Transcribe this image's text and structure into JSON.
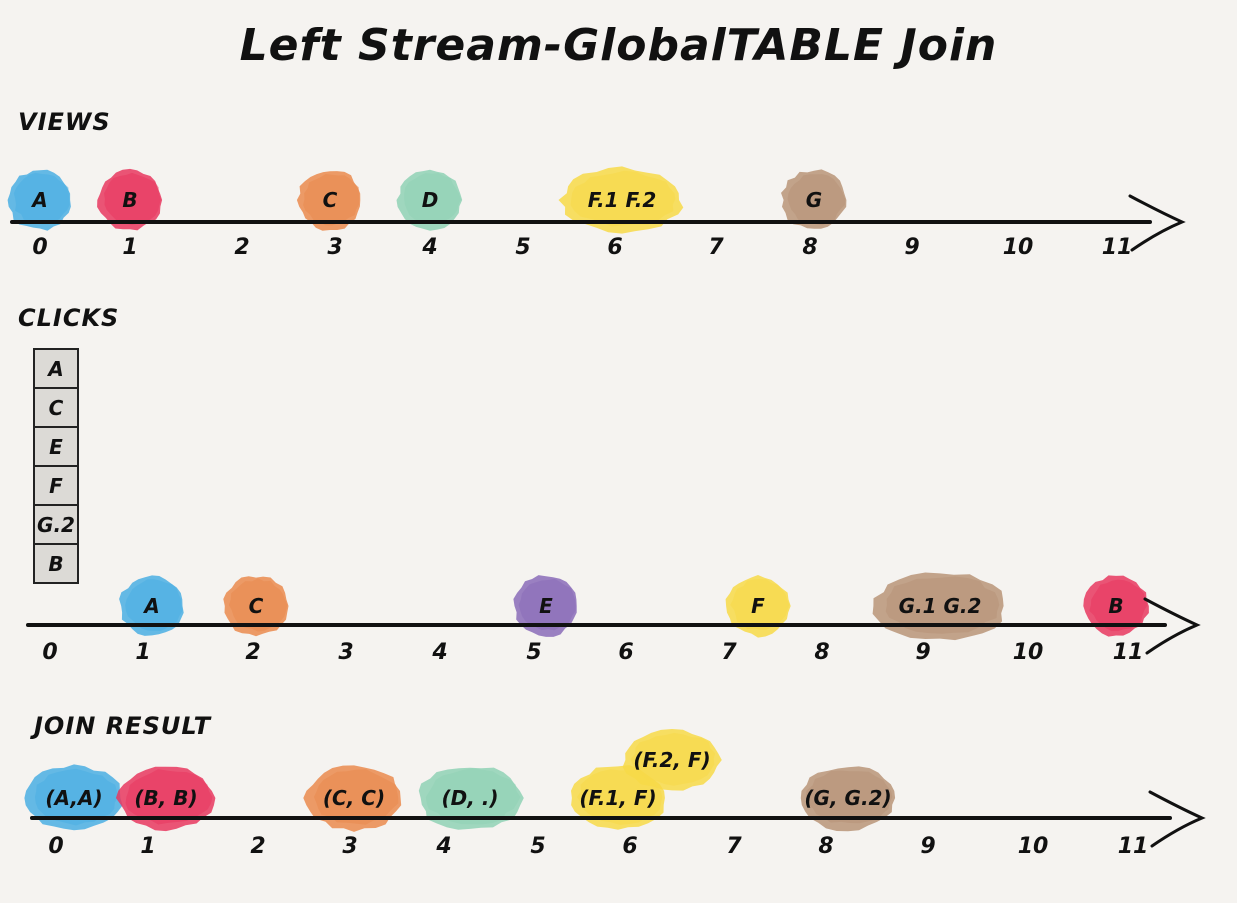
{
  "title": "Left Stream-GlobalTABLE Join",
  "colors": {
    "A": "#4aaee3",
    "B": "#e8375f",
    "C": "#ea8a4e",
    "D": "#8fd1b5",
    "E": "#8a6bb8",
    "F": "#f7d948",
    "G": "#b89478"
  },
  "views": {
    "label": "VIEWS",
    "ticks": [
      "0",
      "1",
      "2",
      "3",
      "4",
      "5",
      "6",
      "7",
      "8",
      "9",
      "10",
      "11"
    ],
    "events": [
      {
        "t": 0,
        "label": "A",
        "color_key": "A"
      },
      {
        "t": 1,
        "label": "B",
        "color_key": "B"
      },
      {
        "t": 3,
        "label": "C",
        "color_key": "C"
      },
      {
        "t": 4,
        "label": "D",
        "color_key": "D"
      },
      {
        "t": 6,
        "label": "F.1   F.2",
        "color_key": "F",
        "wide": true
      },
      {
        "t": 8,
        "label": "G",
        "color_key": "G"
      }
    ]
  },
  "clicks": {
    "label": "CLICKS",
    "table": [
      "A",
      "C",
      "E",
      "F",
      "G.2",
      "B"
    ],
    "ticks": [
      "0",
      "1",
      "2",
      "3",
      "4",
      "5",
      "6",
      "7",
      "8",
      "9",
      "10",
      "11"
    ],
    "events": [
      {
        "t": 1,
        "label": "A",
        "color_key": "A"
      },
      {
        "t": 2,
        "label": "C",
        "color_key": "C"
      },
      {
        "t": 5,
        "label": "E",
        "color_key": "E"
      },
      {
        "t": 7,
        "label": "F",
        "color_key": "F"
      },
      {
        "t": 9,
        "label": "G.1   G.2",
        "color_key": "G",
        "wide": true
      },
      {
        "t": 11,
        "label": "B",
        "color_key": "B"
      }
    ]
  },
  "join": {
    "label": "JOIN RESULT",
    "ticks": [
      "0",
      "1",
      "2",
      "3",
      "4",
      "5",
      "6",
      "7",
      "8",
      "9",
      "10",
      "11"
    ],
    "events": [
      {
        "t": 0,
        "label": "(A,A)",
        "color_key": "A"
      },
      {
        "t": 1,
        "label": "(B, B)",
        "color_key": "B"
      },
      {
        "t": 3,
        "label": "(C, C)",
        "color_key": "C"
      },
      {
        "t": 4,
        "label": "(D, .)",
        "color_key": "D"
      },
      {
        "t": 6,
        "label": "(F.1, F)",
        "color_key": "F"
      },
      {
        "t": 6.5,
        "label": "(F.2, F)",
        "color_key": "F",
        "raised": true
      },
      {
        "t": 8,
        "label": "(G, G.2)",
        "color_key": "G"
      }
    ]
  }
}
